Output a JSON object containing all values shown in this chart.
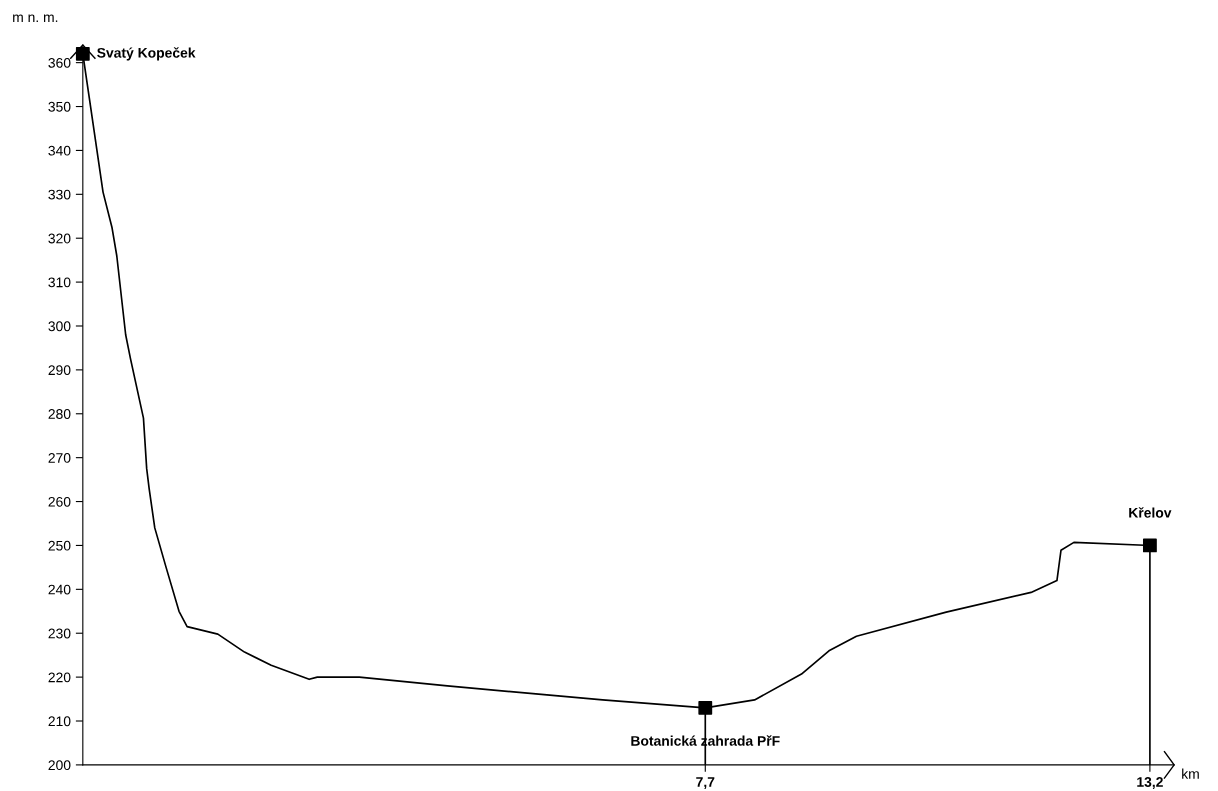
{
  "chart_data": {
    "type": "line",
    "xlabel": "km",
    "ylabel": "m n. m.",
    "xlim": [
      0,
      13.5
    ],
    "ylim": [
      200,
      364
    ],
    "xticks": [
      {
        "value": 7.7,
        "label": "7,7"
      },
      {
        "value": 13.2,
        "label": "13,2"
      }
    ],
    "yticks": [
      200,
      210,
      220,
      230,
      240,
      250,
      260,
      270,
      280,
      290,
      300,
      310,
      320,
      330,
      340,
      350,
      360
    ],
    "grid": false,
    "legend": false,
    "series": [
      {
        "color": "#000000",
        "marker": "none",
        "x": [
          0,
          0.08,
          0.25,
          0.36,
          0.42,
          0.53,
          0.59,
          0.75,
          0.79,
          0.82,
          0.89,
          1.03,
          1.19,
          1.29,
          1.67,
          2.0,
          2.33,
          2.8,
          2.9,
          3.42,
          4.51,
          6.43,
          7.7,
          8.31,
          8.89,
          9.23,
          9.57,
          10.68,
          11.73,
          12.05,
          12.1,
          12.26,
          13.2
        ],
        "values": [
          362,
          352,
          330.5,
          322.5,
          316,
          298,
          292.5,
          279,
          267.5,
          263,
          254,
          245,
          235,
          231.5,
          229.8,
          225.7,
          222.7,
          219.5,
          220,
          220,
          218,
          214.8,
          213,
          214.8,
          220.7,
          226,
          229.3,
          234.8,
          239.3,
          242,
          248.9,
          250.7,
          250
        ]
      },
      {
        "type": "scatter",
        "color": "#000000",
        "marker": "square",
        "x": [
          0,
          7.7,
          13.2
        ],
        "values": [
          362,
          213,
          250
        ],
        "errors": [
          null,
          [
            200,
            213
          ],
          [
            200,
            250
          ]
        ]
      }
    ],
    "annotations": [
      {
        "text": "Svatý Kopeček",
        "x": 0,
        "y": 362
      },
      {
        "text": "Botanická zahrada PřF",
        "x": 7.7,
        "y": 213
      },
      {
        "text": "Křelov",
        "x": 13.2,
        "y": 250
      }
    ]
  }
}
